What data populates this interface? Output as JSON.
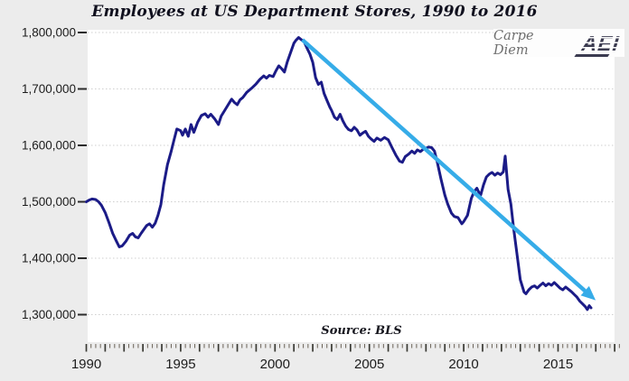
{
  "title": "Employees at US Department Stores, 1990 to 2016",
  "branding": {
    "carpe_diem": "Carpe Diem",
    "aei": "AEI"
  },
  "source_note": "Source: BLS",
  "colors": {
    "background": "#ececec",
    "plot_background": "#ffffff",
    "gridline": "#cfcfcf",
    "axis_text": "#1c1c1c",
    "tick": "#3a3a34",
    "series": "#1b1b87",
    "trend": "#36ace8",
    "brand_text": "#6f6f6f",
    "logo": "#3b3b50"
  },
  "chart_data": {
    "type": "line",
    "title": "Employees at US Department Stores, 1990 to 2016",
    "xlabel": "",
    "ylabel": "",
    "source": "Source: BLS",
    "grid": "horizontal-dotted",
    "legend": "none",
    "x_axis": {
      "range": [
        1990,
        2018.3
      ],
      "major_tick_every_years": 1,
      "minor_tick_every_years": 0.25,
      "labeled_ticks": [
        1990,
        1995,
        2000,
        2005,
        2010,
        2015
      ]
    },
    "y_axis": {
      "range": [
        1300000,
        1800000
      ],
      "ticks": [
        {
          "value": 1800000,
          "label": "1,800,000"
        },
        {
          "value": 1700000,
          "label": "1,700,000"
        },
        {
          "value": 1600000,
          "label": "1,600,000"
        },
        {
          "value": 1500000,
          "label": "1,500,000"
        },
        {
          "value": 1400000,
          "label": "1,400,000"
        },
        {
          "value": 1300000,
          "label": "1,300,000"
        }
      ]
    },
    "series": [
      {
        "name": "Department store employees (BLS)",
        "color": "#1b1b87",
        "points": [
          [
            1990.0,
            1500000
          ],
          [
            1990.15,
            1503000
          ],
          [
            1990.3,
            1505000
          ],
          [
            1990.5,
            1504000
          ],
          [
            1990.65,
            1500000
          ],
          [
            1990.8,
            1494000
          ],
          [
            1991.0,
            1481000
          ],
          [
            1991.2,
            1463000
          ],
          [
            1991.4,
            1444000
          ],
          [
            1991.6,
            1430000
          ],
          [
            1991.75,
            1420000
          ],
          [
            1991.9,
            1422000
          ],
          [
            1992.1,
            1430000
          ],
          [
            1992.3,
            1441000
          ],
          [
            1992.45,
            1444000
          ],
          [
            1992.6,
            1438000
          ],
          [
            1992.75,
            1436000
          ],
          [
            1992.9,
            1444000
          ],
          [
            1993.05,
            1451000
          ],
          [
            1993.2,
            1458000
          ],
          [
            1993.35,
            1461000
          ],
          [
            1993.5,
            1455000
          ],
          [
            1993.65,
            1462000
          ],
          [
            1993.8,
            1476000
          ],
          [
            1993.95,
            1495000
          ],
          [
            1994.1,
            1530000
          ],
          [
            1994.3,
            1566000
          ],
          [
            1994.5,
            1590000
          ],
          [
            1994.65,
            1610000
          ],
          [
            1994.8,
            1629000
          ],
          [
            1995.0,
            1626000
          ],
          [
            1995.1,
            1618000
          ],
          [
            1995.25,
            1629000
          ],
          [
            1995.4,
            1616000
          ],
          [
            1995.55,
            1637000
          ],
          [
            1995.7,
            1623000
          ],
          [
            1995.9,
            1641000
          ],
          [
            1996.1,
            1653000
          ],
          [
            1996.3,
            1656000
          ],
          [
            1996.45,
            1650000
          ],
          [
            1996.6,
            1655000
          ],
          [
            1996.8,
            1647000
          ],
          [
            1997.0,
            1637000
          ],
          [
            1997.15,
            1652000
          ],
          [
            1997.3,
            1660000
          ],
          [
            1997.5,
            1671000
          ],
          [
            1997.7,
            1682000
          ],
          [
            1997.85,
            1676000
          ],
          [
            1998.0,
            1672000
          ],
          [
            1998.15,
            1681000
          ],
          [
            1998.3,
            1685000
          ],
          [
            1998.5,
            1694000
          ],
          [
            1998.75,
            1701000
          ],
          [
            1999.0,
            1709000
          ],
          [
            1999.2,
            1717000
          ],
          [
            1999.4,
            1723000
          ],
          [
            1999.55,
            1719000
          ],
          [
            1999.7,
            1724000
          ],
          [
            1999.9,
            1722000
          ],
          [
            2000.05,
            1732000
          ],
          [
            2000.2,
            1741000
          ],
          [
            2000.35,
            1736000
          ],
          [
            2000.5,
            1730000
          ],
          [
            2000.65,
            1748000
          ],
          [
            2000.8,
            1762000
          ],
          [
            2001.0,
            1781000
          ],
          [
            2001.1,
            1786000
          ],
          [
            2001.25,
            1791000
          ],
          [
            2001.4,
            1787000
          ],
          [
            2001.55,
            1783000
          ],
          [
            2001.7,
            1772000
          ],
          [
            2001.85,
            1762000
          ],
          [
            2002.0,
            1747000
          ],
          [
            2002.15,
            1720000
          ],
          [
            2002.3,
            1708000
          ],
          [
            2002.45,
            1712000
          ],
          [
            2002.6,
            1692000
          ],
          [
            2002.75,
            1680000
          ],
          [
            2002.9,
            1668000
          ],
          [
            2003.0,
            1662000
          ],
          [
            2003.15,
            1650000
          ],
          [
            2003.3,
            1646000
          ],
          [
            2003.45,
            1655000
          ],
          [
            2003.6,
            1643000
          ],
          [
            2003.75,
            1634000
          ],
          [
            2003.9,
            1628000
          ],
          [
            2004.05,
            1626000
          ],
          [
            2004.2,
            1632000
          ],
          [
            2004.35,
            1627000
          ],
          [
            2004.5,
            1618000
          ],
          [
            2004.65,
            1622000
          ],
          [
            2004.8,
            1625000
          ],
          [
            2004.95,
            1616000
          ],
          [
            2005.1,
            1611000
          ],
          [
            2005.25,
            1607000
          ],
          [
            2005.4,
            1613000
          ],
          [
            2005.6,
            1609000
          ],
          [
            2005.8,
            1614000
          ],
          [
            2006.0,
            1610000
          ],
          [
            2006.2,
            1596000
          ],
          [
            2006.4,
            1583000
          ],
          [
            2006.6,
            1572000
          ],
          [
            2006.75,
            1570000
          ],
          [
            2006.9,
            1580000
          ],
          [
            2007.1,
            1585000
          ],
          [
            2007.25,
            1590000
          ],
          [
            2007.4,
            1586000
          ],
          [
            2007.55,
            1592000
          ],
          [
            2007.7,
            1589000
          ],
          [
            2007.85,
            1593000
          ],
          [
            2008.0,
            1595000
          ],
          [
            2008.15,
            1597000
          ],
          [
            2008.3,
            1596000
          ],
          [
            2008.45,
            1590000
          ],
          [
            2008.6,
            1570000
          ],
          [
            2008.8,
            1540000
          ],
          [
            2009.0,
            1512000
          ],
          [
            2009.15,
            1496000
          ],
          [
            2009.35,
            1480000
          ],
          [
            2009.5,
            1474000
          ],
          [
            2009.7,
            1472000
          ],
          [
            2009.9,
            1461000
          ],
          [
            2010.0,
            1465000
          ],
          [
            2010.2,
            1476000
          ],
          [
            2010.4,
            1506000
          ],
          [
            2010.55,
            1518000
          ],
          [
            2010.7,
            1524000
          ],
          [
            2010.8,
            1517000
          ],
          [
            2010.9,
            1512000
          ],
          [
            2011.05,
            1530000
          ],
          [
            2011.2,
            1544000
          ],
          [
            2011.35,
            1549000
          ],
          [
            2011.5,
            1552000
          ],
          [
            2011.65,
            1547000
          ],
          [
            2011.8,
            1551000
          ],
          [
            2011.95,
            1548000
          ],
          [
            2012.1,
            1553000
          ],
          [
            2012.2,
            1581000
          ],
          [
            2012.35,
            1522000
          ],
          [
            2012.5,
            1496000
          ],
          [
            2012.65,
            1452000
          ],
          [
            2012.8,
            1413000
          ],
          [
            2013.0,
            1362000
          ],
          [
            2013.2,
            1340000
          ],
          [
            2013.3,
            1337000
          ],
          [
            2013.45,
            1344000
          ],
          [
            2013.6,
            1349000
          ],
          [
            2013.75,
            1351000
          ],
          [
            2013.9,
            1347000
          ],
          [
            2014.05,
            1352000
          ],
          [
            2014.2,
            1356000
          ],
          [
            2014.35,
            1351000
          ],
          [
            2014.5,
            1355000
          ],
          [
            2014.65,
            1352000
          ],
          [
            2014.8,
            1357000
          ],
          [
            2014.95,
            1352000
          ],
          [
            2015.1,
            1347000
          ],
          [
            2015.25,
            1344000
          ],
          [
            2015.4,
            1349000
          ],
          [
            2015.55,
            1345000
          ],
          [
            2015.7,
            1341000
          ],
          [
            2015.85,
            1336000
          ],
          [
            2016.0,
            1331000
          ],
          [
            2016.15,
            1324000
          ],
          [
            2016.3,
            1319000
          ],
          [
            2016.45,
            1314000
          ],
          [
            2016.55,
            1309000
          ],
          [
            2016.65,
            1316000
          ],
          [
            2016.75,
            1312000
          ]
        ]
      }
    ],
    "trend_arrow": {
      "name": "Downward trend arrow",
      "color": "#36ace8",
      "from": [
        2001.45,
        1787000
      ],
      "to": [
        2016.6,
        1337000
      ]
    }
  }
}
